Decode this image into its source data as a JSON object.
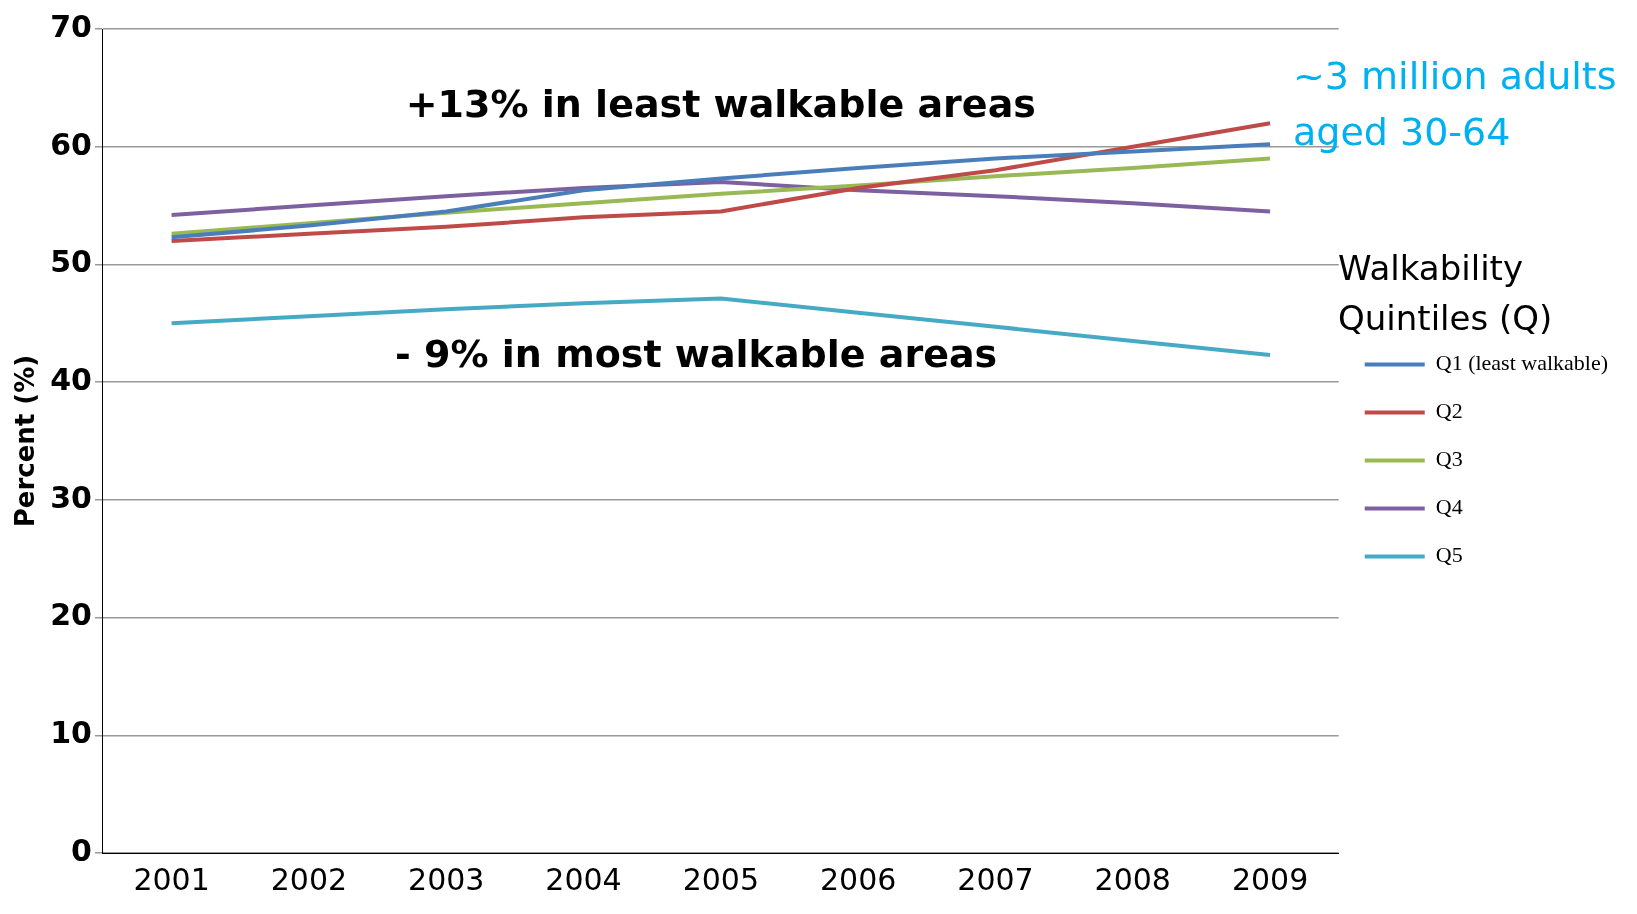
{
  "chart_data": {
    "type": "line",
    "categories": [
      "2001",
      "2002",
      "2003",
      "2004",
      "2005",
      "2006",
      "2007",
      "2008",
      "2009"
    ],
    "series": [
      {
        "name": "Q1 (least walkable)",
        "color": "#4a7ebb",
        "values": [
          52.3,
          53.3,
          54.5,
          56.3,
          57.3,
          58.2,
          59,
          59.6,
          60.2
        ]
      },
      {
        "name": "Q2",
        "color": "#be4b48",
        "values": [
          52,
          52.6,
          53.2,
          54,
          54.5,
          56.5,
          58,
          60,
          62
        ]
      },
      {
        "name": "Q3",
        "color": "#98b954",
        "values": [
          52.6,
          53.5,
          54.4,
          55.2,
          56,
          56.7,
          57.5,
          58.2,
          59
        ]
      },
      {
        "name": "Q4",
        "color": "#7d60a0",
        "values": [
          54.2,
          55,
          55.8,
          56.5,
          57,
          56.3,
          55.8,
          55.2,
          54.5
        ]
      },
      {
        "name": "Q5",
        "color": "#46aac5",
        "values": [
          45,
          45.6,
          46.2,
          46.7,
          47.1,
          45.9,
          44.7,
          43.5,
          42.3
        ]
      }
    ],
    "ylabel": "Percent (%)",
    "legend_title": "Walkability Quintiles (Q)",
    "annotations": [
      "+13% in least walkable areas",
      "- 9% in most walkable areas",
      "~3 million adults aged 30-64"
    ],
    "ylim": [
      0,
      70
    ],
    "yticks": [
      0,
      10,
      20,
      30,
      40,
      50,
      60,
      70
    ],
    "grid": "y",
    "legend": "right",
    "marker": "none",
    "line_style": "solid"
  }
}
